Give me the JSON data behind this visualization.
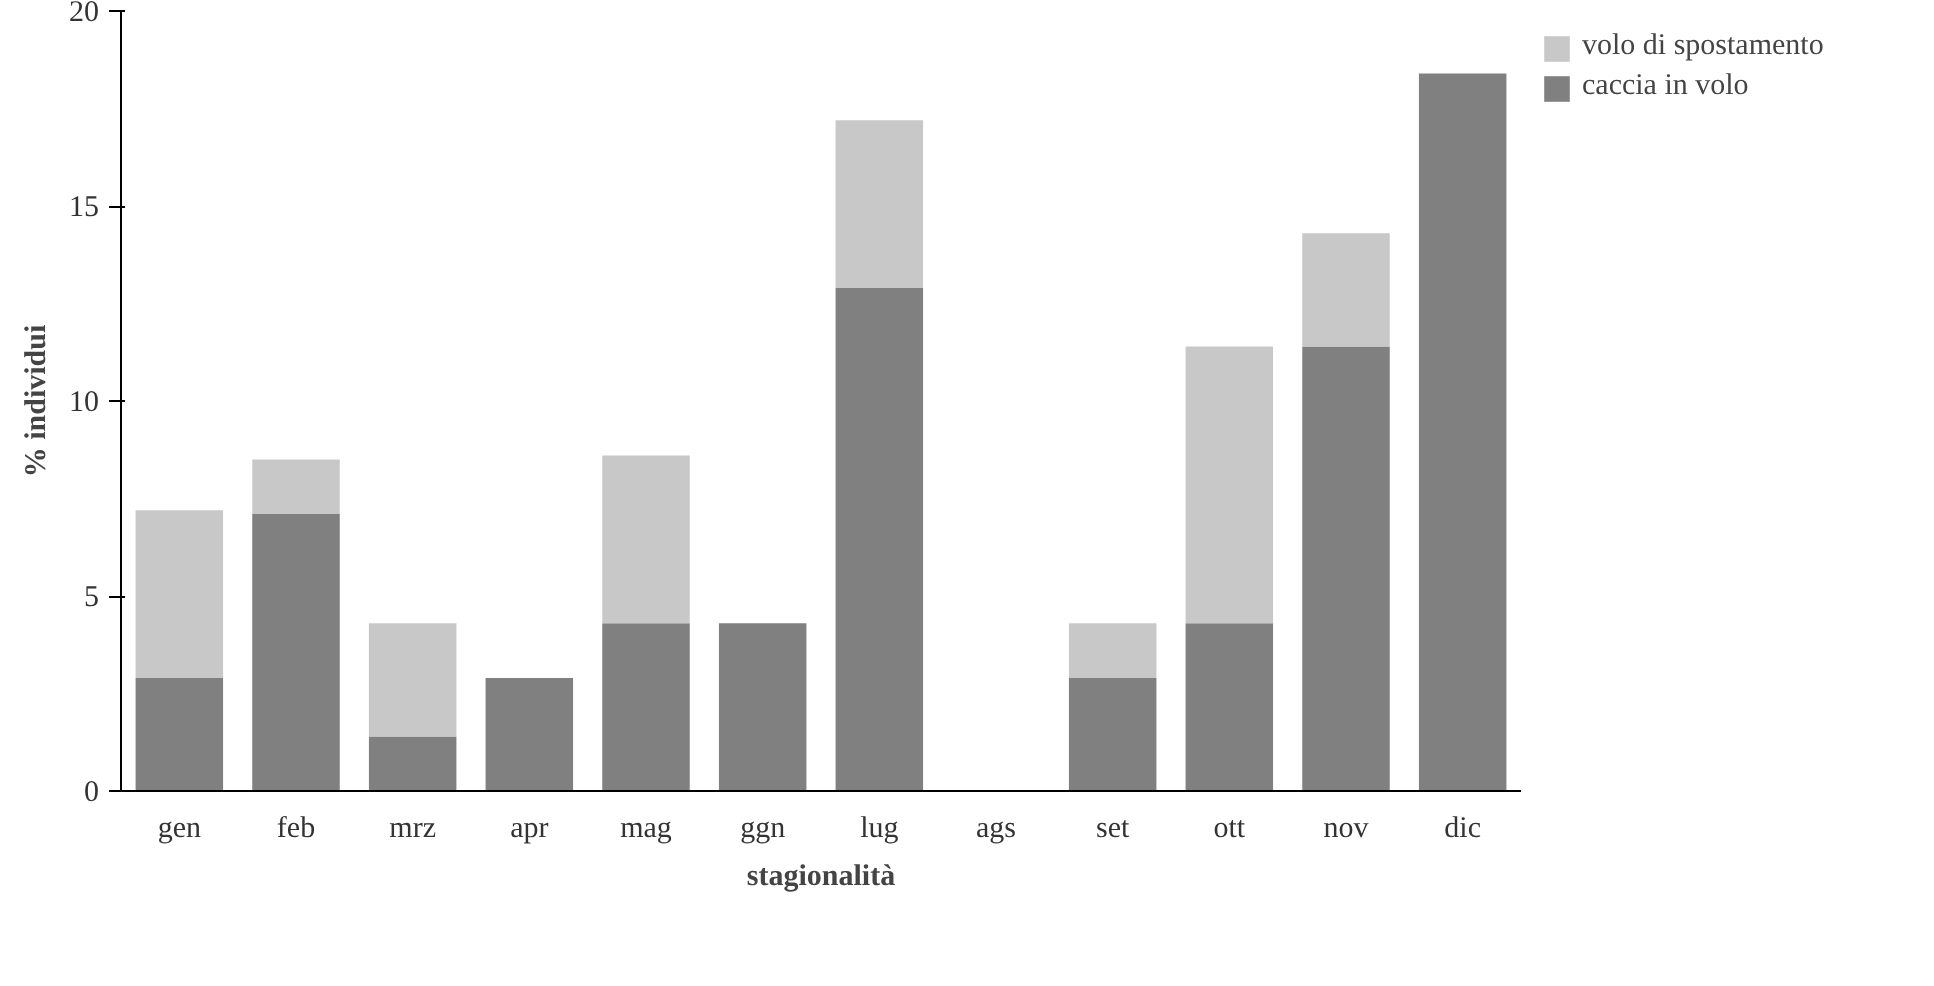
{
  "chart_data": {
    "type": "bar",
    "stacked": true,
    "xlabel": "stagionalità",
    "ylabel": "% individui",
    "categories": [
      "gen",
      "feb",
      "mrz",
      "apr",
      "mag",
      "ggn",
      "lug",
      "ags",
      "set",
      "ott",
      "nov",
      "dic"
    ],
    "series": [
      {
        "name": "caccia in volo",
        "color": "#808080",
        "values": [
          2.9,
          7.1,
          1.4,
          2.9,
          4.3,
          4.3,
          12.9,
          0,
          2.9,
          4.3,
          11.4,
          18.4
        ]
      },
      {
        "name": "volo di spostamento",
        "color": "#c8c8c8",
        "values": [
          4.3,
          1.4,
          2.9,
          0,
          4.3,
          0,
          4.3,
          0,
          1.4,
          7.1,
          2.9,
          0
        ]
      }
    ],
    "ylim": [
      0,
      20
    ],
    "yticks": [
      0,
      5,
      10,
      15,
      20
    ],
    "grid": false,
    "legend": "top right"
  }
}
